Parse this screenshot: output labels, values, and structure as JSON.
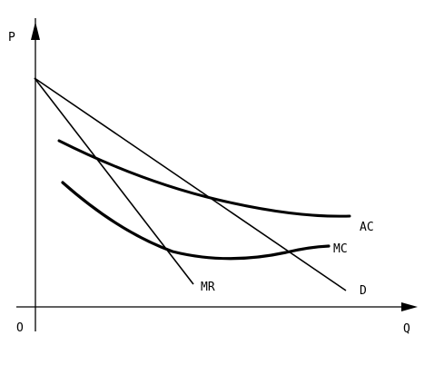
{
  "diagram": {
    "axes": {
      "y_label": "P",
      "x_label": "Q",
      "origin_label": "O"
    },
    "curves": [
      {
        "id": "mr",
        "label": "MR"
      },
      {
        "id": "d",
        "label": "D"
      },
      {
        "id": "ac",
        "label": "AC"
      },
      {
        "id": "mc",
        "label": "MC"
      }
    ]
  }
}
